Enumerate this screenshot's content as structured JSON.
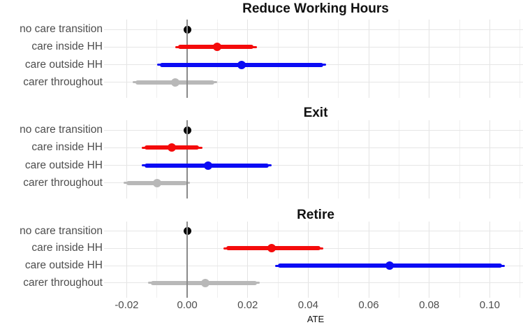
{
  "chart_data": {
    "type": "pointrange-forest",
    "xlabel": "ATE",
    "x_tick_labels": [
      "-0.02",
      "0.00",
      "0.02",
      "0.04",
      "0.06",
      "0.08",
      "0.10"
    ],
    "x_tick_values": [
      -0.02,
      0.0,
      0.02,
      0.04,
      0.06,
      0.08,
      0.1
    ],
    "xlim": [
      -0.0261,
      0.111
    ],
    "grid_step": 0.01,
    "categories": [
      "no care transition",
      "care inside HH",
      "care outside HH",
      "carer throughout"
    ],
    "colors": {
      "black": "#000000",
      "red": "#f40b0b",
      "blue": "#0b0bf4",
      "gray": "#b8b8b8",
      "zero_line": "#8a8a8a",
      "grid_major": "#e3e3e3",
      "grid_minor": "#efefef",
      "axis_text": "#4d4d4d",
      "title_text": "#111111"
    },
    "panels": [
      {
        "title": "Reduce Working Hours",
        "rows": [
          {
            "label": "no care transition",
            "estimate": 0.0,
            "ci_inner": [
              0.0,
              0.0
            ],
            "ci_outer": [
              0.0,
              0.0
            ],
            "color": "black"
          },
          {
            "label": "care inside HH",
            "estimate": 0.01,
            "ci_inner": [
              -0.003,
              0.022
            ],
            "ci_outer": [
              -0.004,
              0.023
            ],
            "color": "red"
          },
          {
            "label": "care outside HH",
            "estimate": 0.018,
            "ci_inner": [
              -0.009,
              0.045
            ],
            "ci_outer": [
              -0.01,
              0.046
            ],
            "color": "blue"
          },
          {
            "label": "carer throughout",
            "estimate": -0.004,
            "ci_inner": [
              -0.017,
              0.009
            ],
            "ci_outer": [
              -0.018,
              0.01
            ],
            "color": "gray"
          }
        ]
      },
      {
        "title": "Exit",
        "rows": [
          {
            "label": "no care transition",
            "estimate": 0.0,
            "ci_inner": [
              0.0,
              0.0
            ],
            "ci_outer": [
              0.0,
              0.0
            ],
            "color": "black"
          },
          {
            "label": "care inside HH",
            "estimate": -0.005,
            "ci_inner": [
              -0.014,
              0.004
            ],
            "ci_outer": [
              -0.015,
              0.005
            ],
            "color": "red"
          },
          {
            "label": "care outside HH",
            "estimate": 0.007,
            "ci_inner": [
              -0.014,
              0.027
            ],
            "ci_outer": [
              -0.015,
              0.028
            ],
            "color": "blue"
          },
          {
            "label": "carer throughout",
            "estimate": -0.01,
            "ci_inner": [
              -0.02,
              0.0
            ],
            "ci_outer": [
              -0.021,
              0.001
            ],
            "color": "gray"
          }
        ]
      },
      {
        "title": "Retire",
        "rows": [
          {
            "label": "no care transition",
            "estimate": 0.0,
            "ci_inner": [
              0.0,
              0.0
            ],
            "ci_outer": [
              0.0,
              0.0
            ],
            "color": "black"
          },
          {
            "label": "care inside HH",
            "estimate": 0.028,
            "ci_inner": [
              0.013,
              0.044
            ],
            "ci_outer": [
              0.012,
              0.045
            ],
            "color": "red"
          },
          {
            "label": "care outside HH",
            "estimate": 0.067,
            "ci_inner": [
              0.03,
              0.104
            ],
            "ci_outer": [
              0.029,
              0.105
            ],
            "color": "blue"
          },
          {
            "label": "carer throughout",
            "estimate": 0.006,
            "ci_inner": [
              -0.012,
              0.023
            ],
            "ci_outer": [
              -0.013,
              0.024
            ],
            "color": "gray"
          }
        ]
      }
    ]
  }
}
